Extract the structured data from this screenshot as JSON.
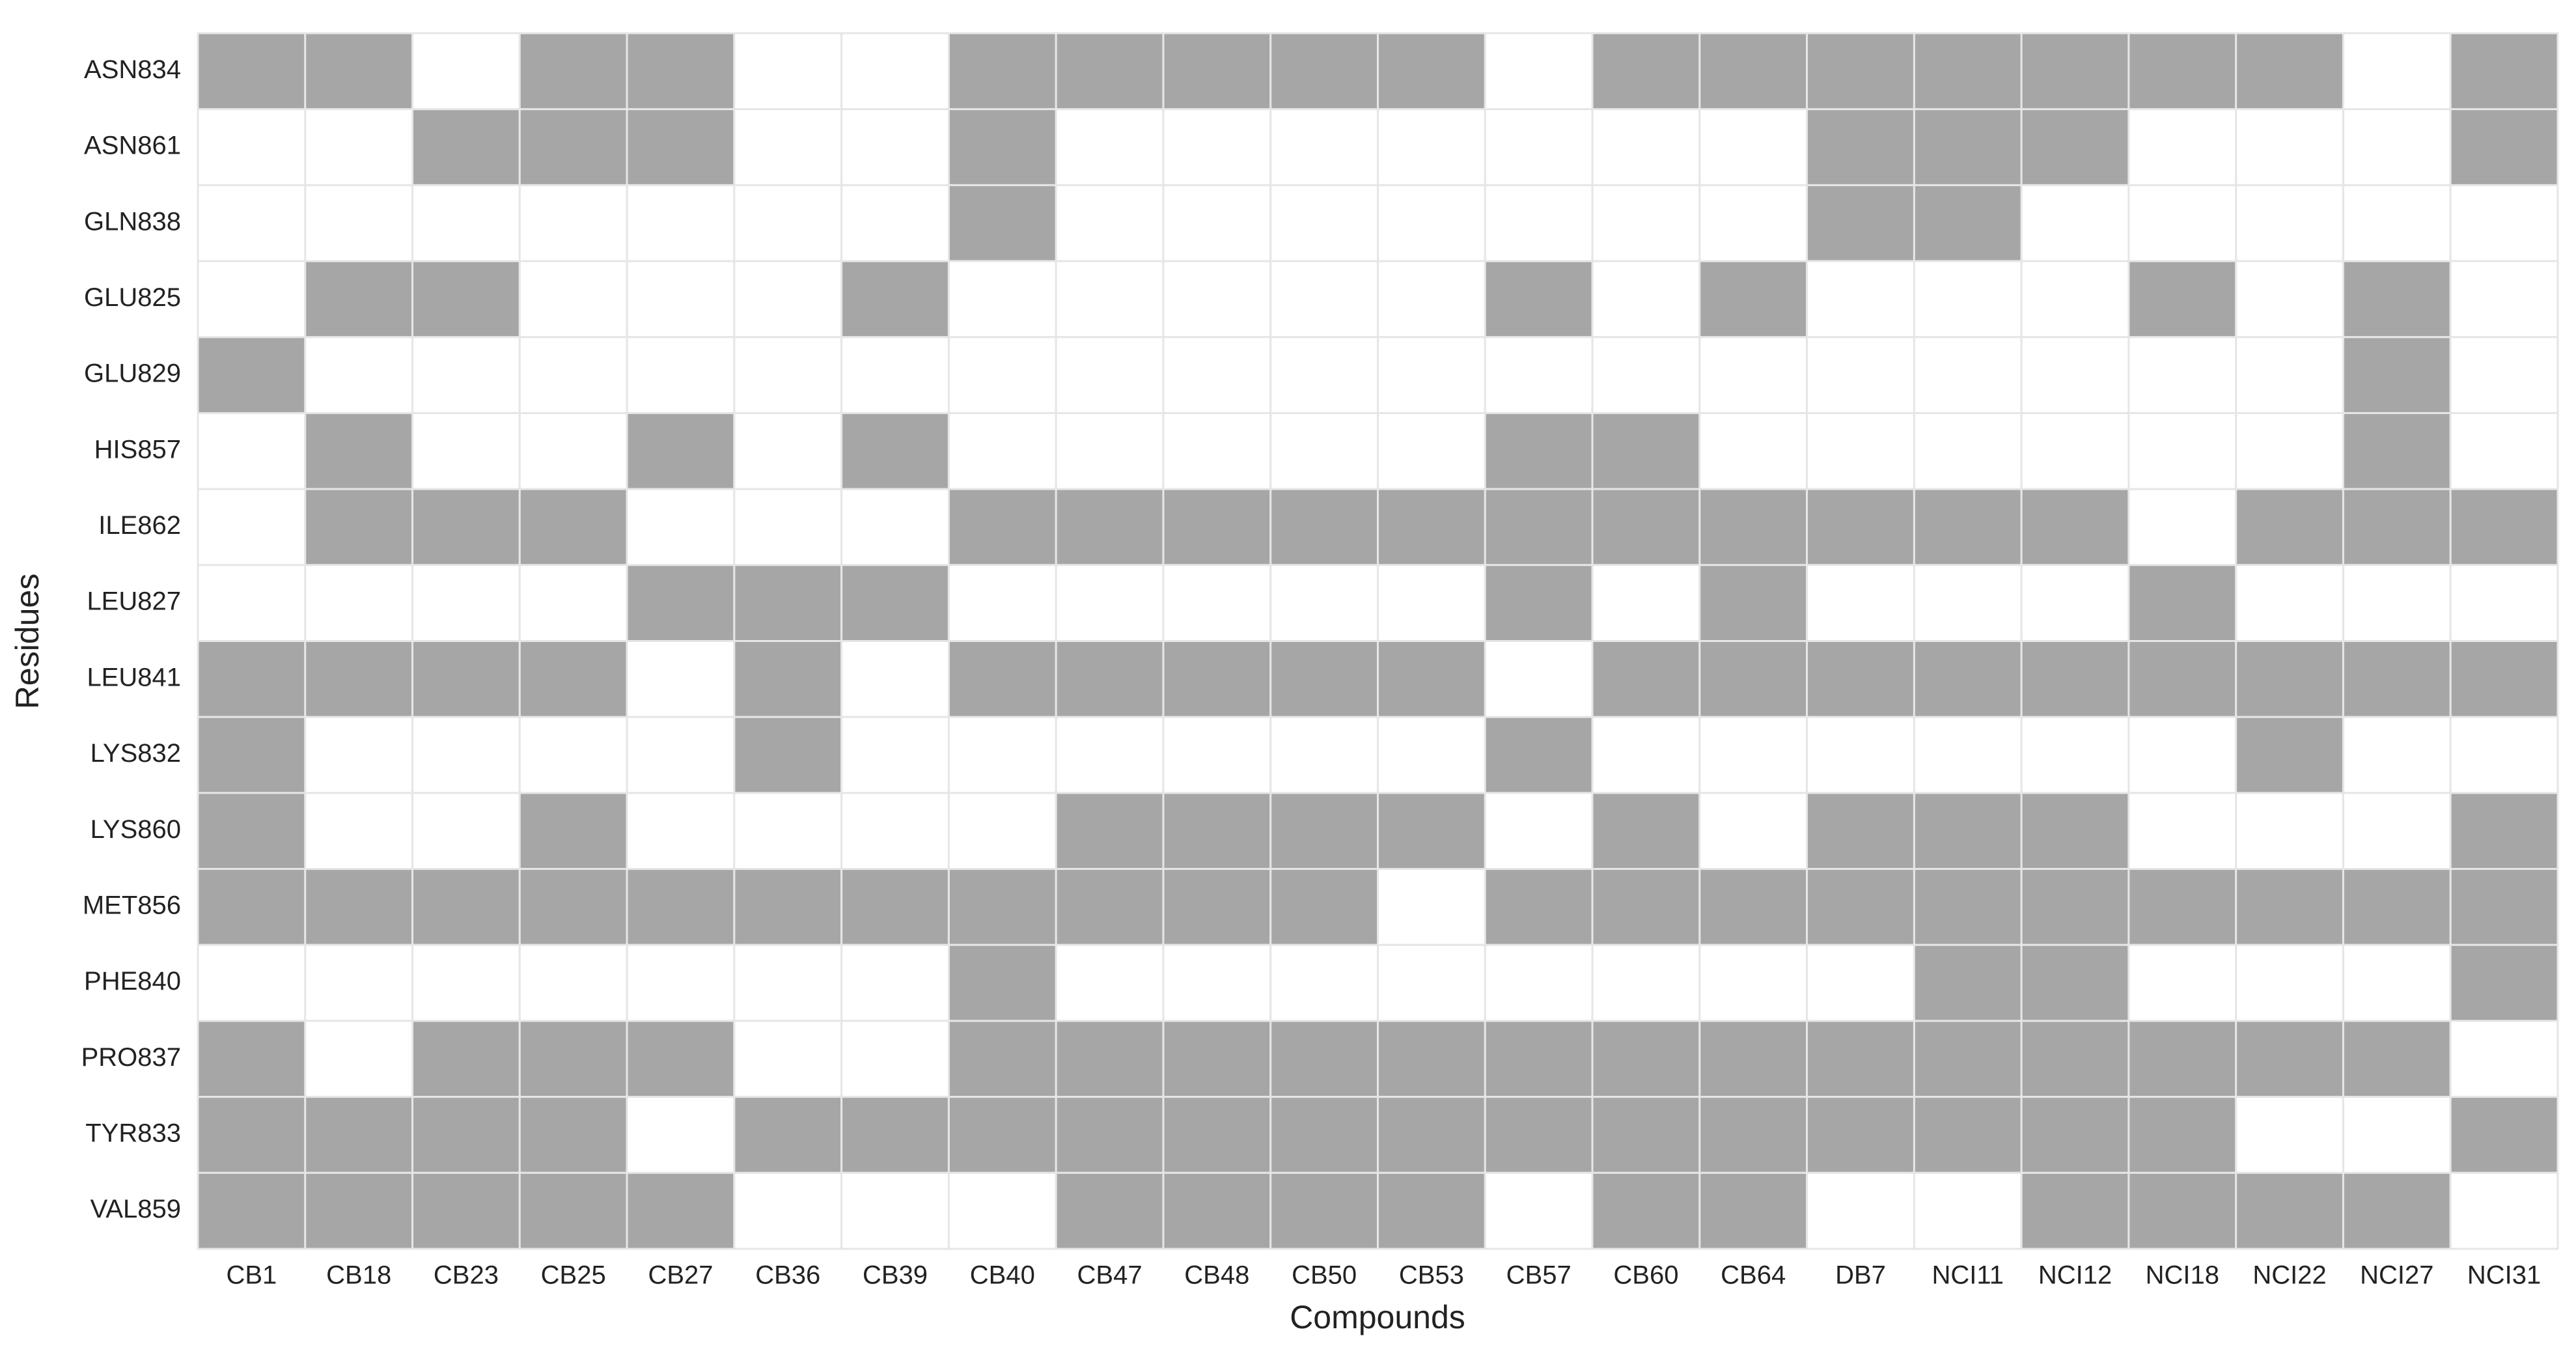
{
  "chart_data": {
    "type": "heatmap",
    "xlabel": "Compounds",
    "ylabel": "Residues",
    "x": [
      "CB1",
      "CB18",
      "CB23",
      "CB25",
      "CB27",
      "CB36",
      "CB39",
      "CB40",
      "CB47",
      "CB48",
      "CB50",
      "CB53",
      "CB57",
      "CB60",
      "CB64",
      "DB7",
      "NCI11",
      "NCI12",
      "NCI18",
      "NCI22",
      "NCI27",
      "NCI31"
    ],
    "y": [
      "ASN834",
      "ASN861",
      "GLN838",
      "GLU825",
      "GLU829",
      "HIS857",
      "ILE862",
      "LEU827",
      "LEU841",
      "LYS832",
      "LYS860",
      "MET856",
      "PHE840",
      "PRO837",
      "TYR833",
      "VAL859"
    ],
    "z": [
      [
        1,
        1,
        0,
        1,
        1,
        0,
        0,
        1,
        1,
        1,
        1,
        1,
        0,
        1,
        1,
        1,
        1,
        1,
        1,
        1,
        0,
        1
      ],
      [
        0,
        0,
        1,
        1,
        1,
        0,
        0,
        1,
        0,
        0,
        0,
        0,
        0,
        0,
        0,
        1,
        1,
        1,
        0,
        0,
        0,
        1
      ],
      [
        0,
        0,
        0,
        0,
        0,
        0,
        0,
        1,
        0,
        0,
        0,
        0,
        0,
        0,
        0,
        1,
        1,
        0,
        0,
        0,
        0,
        0
      ],
      [
        0,
        1,
        1,
        0,
        0,
        0,
        1,
        0,
        0,
        0,
        0,
        0,
        1,
        0,
        1,
        0,
        0,
        0,
        1,
        0,
        1,
        0
      ],
      [
        1,
        0,
        0,
        0,
        0,
        0,
        0,
        0,
        0,
        0,
        0,
        0,
        0,
        0,
        0,
        0,
        0,
        0,
        0,
        0,
        1,
        0
      ],
      [
        0,
        1,
        0,
        0,
        1,
        0,
        1,
        0,
        0,
        0,
        0,
        0,
        1,
        1,
        0,
        0,
        0,
        0,
        0,
        0,
        1,
        0
      ],
      [
        0,
        1,
        1,
        1,
        0,
        0,
        0,
        1,
        1,
        1,
        1,
        1,
        1,
        1,
        1,
        1,
        1,
        1,
        0,
        1,
        1,
        1
      ],
      [
        0,
        0,
        0,
        0,
        1,
        1,
        1,
        0,
        0,
        0,
        0,
        0,
        1,
        0,
        1,
        0,
        0,
        0,
        1,
        0,
        0,
        0
      ],
      [
        1,
        1,
        1,
        1,
        0,
        1,
        0,
        1,
        1,
        1,
        1,
        1,
        0,
        1,
        1,
        1,
        1,
        1,
        1,
        1,
        1,
        1
      ],
      [
        1,
        0,
        0,
        0,
        0,
        1,
        0,
        0,
        0,
        0,
        0,
        0,
        1,
        0,
        0,
        0,
        0,
        0,
        0,
        1,
        0,
        0
      ],
      [
        1,
        0,
        0,
        1,
        0,
        0,
        0,
        0,
        1,
        1,
        1,
        1,
        0,
        1,
        0,
        1,
        1,
        1,
        0,
        0,
        0,
        1
      ],
      [
        1,
        1,
        1,
        1,
        1,
        1,
        1,
        1,
        1,
        1,
        1,
        0,
        1,
        1,
        1,
        1,
        1,
        1,
        1,
        1,
        1,
        1
      ],
      [
        0,
        0,
        0,
        0,
        0,
        0,
        0,
        1,
        0,
        0,
        0,
        0,
        0,
        0,
        0,
        0,
        1,
        1,
        0,
        0,
        0,
        1
      ],
      [
        1,
        0,
        1,
        1,
        1,
        0,
        0,
        1,
        1,
        1,
        1,
        1,
        1,
        1,
        1,
        1,
        1,
        1,
        1,
        1,
        1,
        0
      ],
      [
        1,
        1,
        1,
        1,
        0,
        1,
        1,
        1,
        1,
        1,
        1,
        1,
        1,
        1,
        1,
        1,
        1,
        1,
        1,
        0,
        0,
        1
      ],
      [
        1,
        1,
        1,
        1,
        1,
        0,
        0,
        0,
        1,
        1,
        1,
        1,
        0,
        1,
        1,
        0,
        0,
        1,
        1,
        1,
        1,
        0
      ]
    ],
    "colors": [
      "#ffffff",
      "#a6a6a6"
    ]
  }
}
